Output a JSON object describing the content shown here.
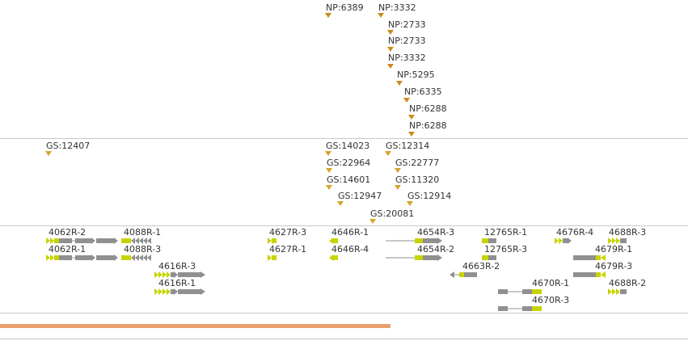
{
  "tracks": {
    "np": {
      "features": [
        {
          "label": "NP:6389"
        },
        {
          "label": "NP:3332"
        },
        {
          "label": "NP:2733"
        },
        {
          "label": "NP:2733"
        },
        {
          "label": "NP:3332"
        },
        {
          "label": "NP:5295"
        },
        {
          "label": "NP:6335"
        },
        {
          "label": "NP:6288"
        },
        {
          "label": "NP:6288"
        }
      ]
    },
    "gs": {
      "features": [
        {
          "label": "GS:12407"
        },
        {
          "label": "GS:14023"
        },
        {
          "label": "GS:12314"
        },
        {
          "label": "GS:22964"
        },
        {
          "label": "GS:22777"
        },
        {
          "label": "GS:14601"
        },
        {
          "label": "GS:11320"
        },
        {
          "label": "GS:12947"
        },
        {
          "label": "GS:12914"
        },
        {
          "label": "GS:20081"
        }
      ]
    },
    "genes": {
      "features": [
        {
          "label": "4062R-2"
        },
        {
          "label": "4088R-1"
        },
        {
          "label": "4062R-1"
        },
        {
          "label": "4088R-3"
        },
        {
          "label": "4616R-3"
        },
        {
          "label": "4616R-1"
        },
        {
          "label": "4627R-3"
        },
        {
          "label": "4627R-1"
        },
        {
          "label": "4646R-1"
        },
        {
          "label": "4646R-4"
        },
        {
          "label": "4654R-3"
        },
        {
          "label": "4654R-2"
        },
        {
          "label": "12765R-1"
        },
        {
          "label": "12765R-3"
        },
        {
          "label": "4663R-2"
        },
        {
          "label": "4676R-4"
        },
        {
          "label": "4688R-3"
        },
        {
          "label": "4679R-1"
        },
        {
          "label": "4679R-3"
        },
        {
          "label": "4670R-1"
        },
        {
          "label": "4688R-2"
        },
        {
          "label": "4670R-3"
        }
      ]
    }
  },
  "colors": {
    "marker": "#d8a22a",
    "exon": "#909090",
    "highlight": "#c8d400",
    "coverage": "#e9a070",
    "separator": "#c8c8c8"
  }
}
